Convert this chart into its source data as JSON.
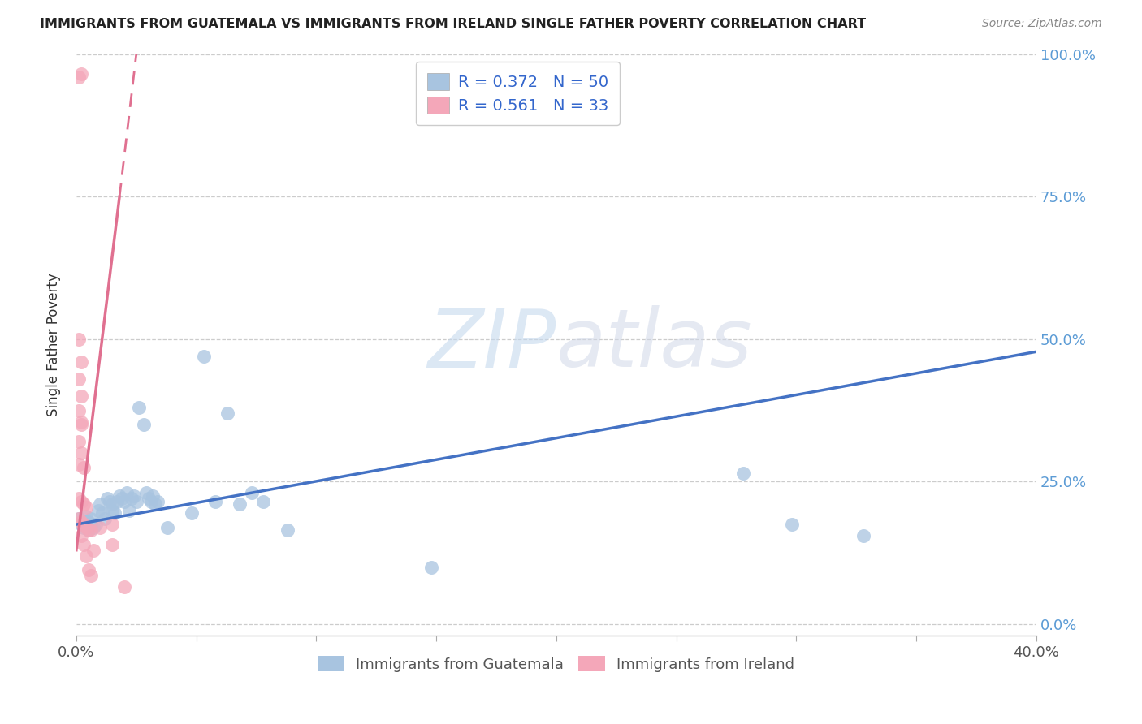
{
  "title": "IMMIGRANTS FROM GUATEMALA VS IMMIGRANTS FROM IRELAND SINGLE FATHER POVERTY CORRELATION CHART",
  "source": "Source: ZipAtlas.com",
  "ylabel": "Single Father Poverty",
  "legend_label_blue": "Immigrants from Guatemala",
  "legend_label_pink": "Immigrants from Ireland",
  "R_blue": 0.372,
  "N_blue": 50,
  "R_pink": 0.561,
  "N_pink": 33,
  "xmin": 0.0,
  "xmax": 0.4,
  "ymin": -0.02,
  "ymax": 1.0,
  "yaxis_min": 0.0,
  "yaxis_max": 1.0,
  "ytick_labels": [
    "0.0%",
    "25.0%",
    "50.0%",
    "75.0%",
    "100.0%"
  ],
  "ytick_values": [
    0.0,
    0.25,
    0.5,
    0.75,
    1.0
  ],
  "xtick_values": [
    0.0,
    0.05,
    0.1,
    0.15,
    0.2,
    0.25,
    0.3,
    0.35,
    0.4
  ],
  "color_blue": "#a8c4e0",
  "color_pink": "#f4a7b9",
  "trendline_blue": "#4472C4",
  "trendline_pink": "#E07090",
  "watermark_zip": "ZIP",
  "watermark_atlas": "atlas",
  "blue_scatter": [
    [
      0.001,
      0.185
    ],
    [
      0.002,
      0.175
    ],
    [
      0.003,
      0.17
    ],
    [
      0.004,
      0.18
    ],
    [
      0.004,
      0.19
    ],
    [
      0.005,
      0.165
    ],
    [
      0.005,
      0.18
    ],
    [
      0.006,
      0.175
    ],
    [
      0.006,
      0.185
    ],
    [
      0.007,
      0.17
    ],
    [
      0.008,
      0.175
    ],
    [
      0.009,
      0.2
    ],
    [
      0.01,
      0.21
    ],
    [
      0.011,
      0.195
    ],
    [
      0.012,
      0.185
    ],
    [
      0.013,
      0.22
    ],
    [
      0.014,
      0.215
    ],
    [
      0.015,
      0.21
    ],
    [
      0.015,
      0.2
    ],
    [
      0.016,
      0.195
    ],
    [
      0.017,
      0.215
    ],
    [
      0.018,
      0.225
    ],
    [
      0.019,
      0.22
    ],
    [
      0.02,
      0.215
    ],
    [
      0.021,
      0.23
    ],
    [
      0.022,
      0.2
    ],
    [
      0.023,
      0.22
    ],
    [
      0.024,
      0.225
    ],
    [
      0.025,
      0.215
    ],
    [
      0.026,
      0.38
    ],
    [
      0.028,
      0.35
    ],
    [
      0.029,
      0.23
    ],
    [
      0.03,
      0.22
    ],
    [
      0.031,
      0.215
    ],
    [
      0.032,
      0.225
    ],
    [
      0.033,
      0.21
    ],
    [
      0.034,
      0.215
    ],
    [
      0.038,
      0.17
    ],
    [
      0.048,
      0.195
    ],
    [
      0.053,
      0.47
    ],
    [
      0.058,
      0.215
    ],
    [
      0.063,
      0.37
    ],
    [
      0.068,
      0.21
    ],
    [
      0.073,
      0.23
    ],
    [
      0.078,
      0.215
    ],
    [
      0.088,
      0.165
    ],
    [
      0.148,
      0.1
    ],
    [
      0.278,
      0.265
    ],
    [
      0.298,
      0.175
    ],
    [
      0.328,
      0.155
    ]
  ],
  "pink_scatter": [
    [
      0.001,
      0.96
    ],
    [
      0.002,
      0.965
    ],
    [
      0.001,
      0.5
    ],
    [
      0.002,
      0.46
    ],
    [
      0.001,
      0.43
    ],
    [
      0.002,
      0.4
    ],
    [
      0.001,
      0.375
    ],
    [
      0.002,
      0.355
    ],
    [
      0.002,
      0.35
    ],
    [
      0.001,
      0.32
    ],
    [
      0.002,
      0.3
    ],
    [
      0.001,
      0.28
    ],
    [
      0.003,
      0.275
    ],
    [
      0.001,
      0.22
    ],
    [
      0.002,
      0.215
    ],
    [
      0.003,
      0.21
    ],
    [
      0.004,
      0.205
    ],
    [
      0.001,
      0.185
    ],
    [
      0.002,
      0.18
    ],
    [
      0.003,
      0.175
    ],
    [
      0.004,
      0.17
    ],
    [
      0.005,
      0.165
    ],
    [
      0.002,
      0.155
    ],
    [
      0.003,
      0.14
    ],
    [
      0.004,
      0.12
    ],
    [
      0.005,
      0.095
    ],
    [
      0.006,
      0.085
    ],
    [
      0.006,
      0.165
    ],
    [
      0.01,
      0.17
    ],
    [
      0.015,
      0.14
    ],
    [
      0.015,
      0.175
    ],
    [
      0.02,
      0.065
    ],
    [
      0.007,
      0.13
    ]
  ],
  "blue_trendline_solid": [
    [
      0.0,
      0.175
    ],
    [
      0.4,
      0.478
    ]
  ],
  "pink_trendline_solid": [
    [
      0.0,
      0.13
    ],
    [
      0.018,
      0.75
    ]
  ],
  "pink_trendline_dashed": [
    [
      0.018,
      0.75
    ],
    [
      0.025,
      1.0
    ]
  ]
}
